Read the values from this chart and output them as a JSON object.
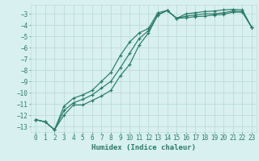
{
  "xlabel": "Humidex (Indice chaleur)",
  "bg_color": "#d8f0f0",
  "grid_color": "#c0dede",
  "line_color": "#2a7a6a",
  "ylim": [
    -13.5,
    -2.2
  ],
  "xlim": [
    -0.5,
    23.5
  ],
  "yticks": [
    -13,
    -12,
    -11,
    -10,
    -9,
    -8,
    -7,
    -6,
    -5,
    -4,
    -3
  ],
  "xticks": [
    0,
    1,
    2,
    3,
    4,
    5,
    6,
    7,
    8,
    9,
    10,
    11,
    12,
    13,
    14,
    15,
    16,
    17,
    18,
    19,
    20,
    21,
    22,
    23
  ],
  "line1_x": [
    0,
    1,
    2,
    3,
    4,
    5,
    6,
    7,
    8,
    9,
    10,
    11,
    12,
    13,
    14,
    15,
    16,
    17,
    18,
    19,
    20,
    21,
    22,
    23
  ],
  "line1_y": [
    -12.4,
    -12.6,
    -13.3,
    -12.0,
    -11.1,
    -11.1,
    -10.7,
    -10.3,
    -9.8,
    -8.5,
    -7.5,
    -5.8,
    -4.7,
    -3.1,
    -2.7,
    -3.4,
    -3.35,
    -3.25,
    -3.2,
    -3.1,
    -3.05,
    -2.85,
    -2.85,
    -4.2
  ],
  "line2_x": [
    0,
    1,
    2,
    3,
    4,
    5,
    6,
    7,
    8,
    9,
    10,
    11,
    12,
    13,
    14,
    15,
    16,
    17,
    18,
    19,
    20,
    21,
    22,
    23
  ],
  "line2_y": [
    -12.4,
    -12.6,
    -13.3,
    -11.6,
    -10.9,
    -10.6,
    -10.2,
    -9.6,
    -9.0,
    -7.8,
    -6.5,
    -5.2,
    -4.5,
    -3.1,
    -2.7,
    -3.4,
    -3.2,
    -3.1,
    -3.0,
    -3.0,
    -2.9,
    -2.75,
    -2.8,
    -4.2
  ],
  "line3_x": [
    0,
    1,
    2,
    3,
    4,
    5,
    6,
    7,
    8,
    9,
    10,
    11,
    12,
    13,
    14,
    15,
    16,
    17,
    18,
    19,
    20,
    21,
    22,
    23
  ],
  "line3_y": [
    -12.4,
    -12.6,
    -13.3,
    -11.2,
    -10.5,
    -10.2,
    -9.8,
    -9.0,
    -8.2,
    -6.7,
    -5.5,
    -4.7,
    -4.3,
    -2.9,
    -2.7,
    -3.4,
    -3.0,
    -2.9,
    -2.8,
    -2.75,
    -2.65,
    -2.6,
    -2.65,
    -4.2
  ]
}
